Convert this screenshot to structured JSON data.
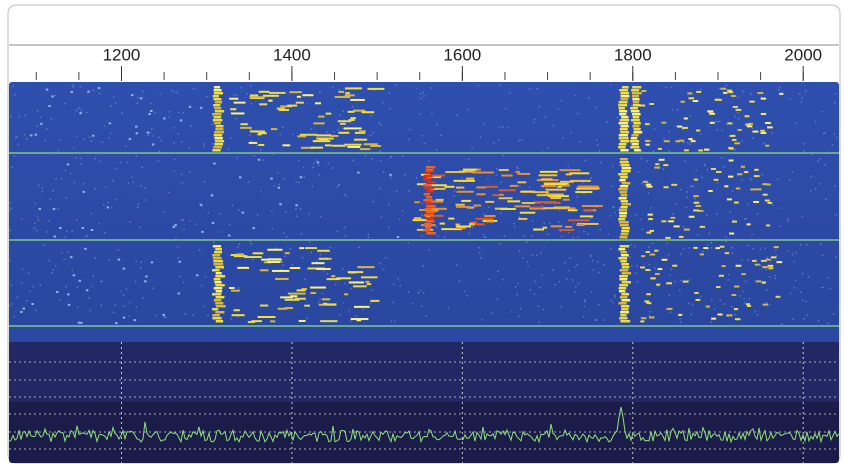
{
  "frequency_axis": {
    "xlim": [
      1068,
      2042
    ],
    "xticks": [
      1200,
      1400,
      1600,
      1800,
      2000
    ]
  }
}
